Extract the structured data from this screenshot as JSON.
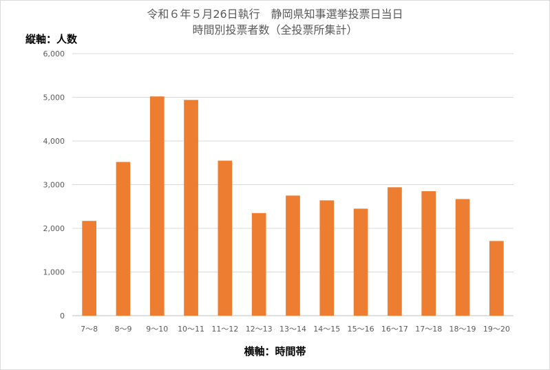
{
  "chart_data": {
    "type": "bar",
    "title": [
      "令和６年５月26日執行　静岡県知事選挙投票日当日",
      "時間別投票者数（全投票所集計）"
    ],
    "ylabel": "縦軸：人数",
    "xlabel": "横軸：時間帯",
    "categories": [
      "7～8",
      "8～9",
      "9～10",
      "10～11",
      "11～12",
      "12～13",
      "13～14",
      "14～15",
      "15～16",
      "16～17",
      "17～18",
      "18～19",
      "19～20"
    ],
    "values": [
      2170,
      3520,
      5020,
      4940,
      3550,
      2350,
      2750,
      2640,
      2450,
      2940,
      2850,
      2670,
      1710
    ],
    "ylim": [
      0,
      6000
    ],
    "yticks": [
      0,
      1000,
      2000,
      3000,
      4000,
      5000,
      6000
    ],
    "ytick_labels": [
      "0",
      "1,000",
      "2,000",
      "3,000",
      "4,000",
      "5,000",
      "6,000"
    ],
    "grid": true,
    "bar_color": "#ed7d31",
    "grid_color": "#d9d9d9"
  }
}
